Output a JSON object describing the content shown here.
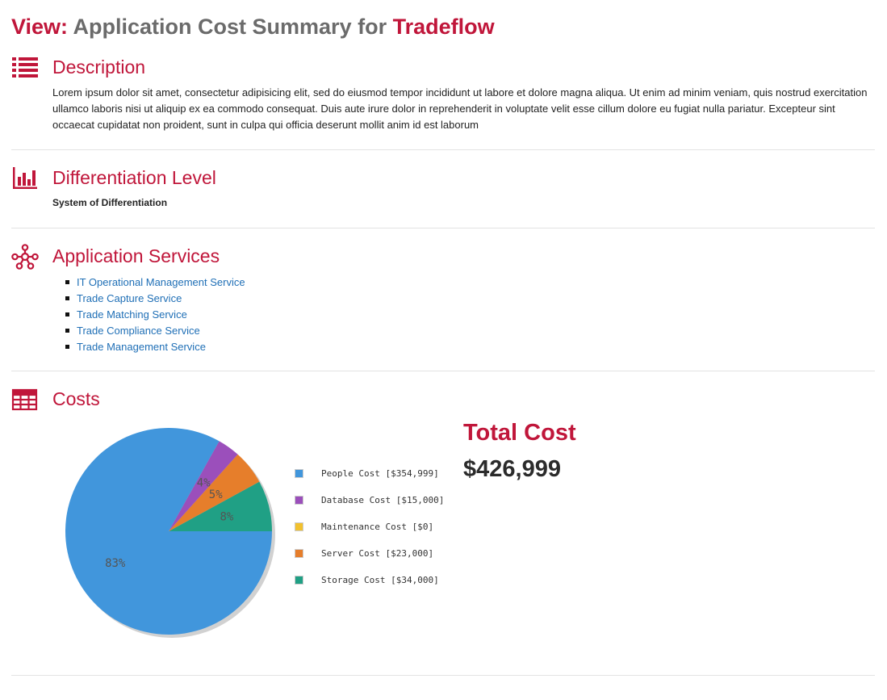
{
  "header": {
    "prefix": "View:",
    "middle": "Application Cost Summary for",
    "app_name": "Tradeflow"
  },
  "description": {
    "title": "Description",
    "text": "Lorem ipsum dolor sit amet, consectetur adipisicing elit, sed do eiusmod tempor incididunt ut labore et dolore magna aliqua. Ut enim ad minim veniam, quis nostrud exercitation ullamco laboris nisi ut aliquip ex ea commodo consequat. Duis aute irure dolor in reprehenderit in voluptate velit esse cillum dolore eu fugiat nulla pariatur. Excepteur sint occaecat cupidatat non proident, sunt in culpa qui officia deserunt mollit anim id est laborum"
  },
  "differentiation": {
    "title": "Differentiation Level",
    "value": "System of Differentiation"
  },
  "services": {
    "title": "Application Services",
    "items": [
      "IT Operational Management Service",
      "Trade Capture Service",
      "Trade Matching Service",
      "Trade Compliance Service",
      "Trade Management Service"
    ]
  },
  "costs": {
    "title": "Costs",
    "total_label": "Total Cost",
    "total_value": "$426,999",
    "legend": [
      "People Cost [$354,999]",
      "Database Cost [$15,000]",
      "Maintenance Cost [$0]",
      "Server Cost [$23,000]",
      "Storage Cost [$34,000]"
    ]
  },
  "colors": {
    "accent": "#c0163a",
    "link": "#1f6fb6",
    "people": "#4196dc",
    "database": "#9b4fbb",
    "maintenance": "#f2c12e",
    "server": "#e67e2b",
    "storage": "#20a085"
  },
  "chart_data": {
    "type": "pie",
    "categories": [
      "People Cost",
      "Database Cost",
      "Maintenance Cost",
      "Server Cost",
      "Storage Cost"
    ],
    "values": [
      354999,
      15000,
      0,
      23000,
      34000
    ],
    "slice_labels": [
      "83%",
      "4%",
      "",
      "5%",
      "8%"
    ],
    "colors": [
      "#4196dc",
      "#9b4fbb",
      "#f2c12e",
      "#e67e2b",
      "#20a085"
    ],
    "legend_position": "right"
  }
}
